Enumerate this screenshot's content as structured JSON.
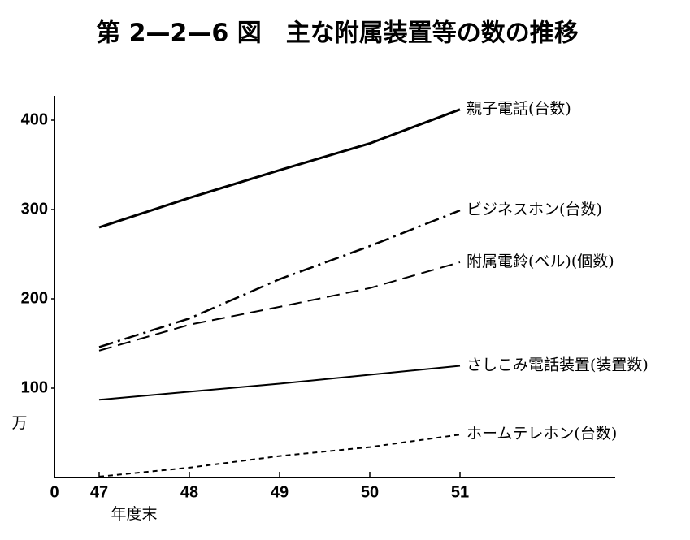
{
  "chart_data": {
    "type": "line",
    "title": "第 2—2—6 図　主な附属装置等の数の推移",
    "y_unit_label": "万",
    "x_label": "年度末",
    "categories": [
      "47",
      "48",
      "49",
      "50",
      "51"
    ],
    "ylim": [
      0,
      420
    ],
    "yticks": [
      0,
      100,
      200,
      300,
      400
    ],
    "grid": false,
    "series": [
      {
        "name": "親子電話(台数)",
        "color": "#000000",
        "line_style": "solid",
        "line_width": 3,
        "values": [
          280,
          313,
          344,
          374,
          412
        ]
      },
      {
        "name": "ビジネスホン(台数)",
        "color": "#000000",
        "line_style": "dashdot",
        "line_width": 2.5,
        "values": [
          146,
          178,
          222,
          259,
          299
        ]
      },
      {
        "name": "附属電鈴(ベル)(個数)",
        "color": "#000000",
        "line_style": "dashed",
        "line_width": 2,
        "values": [
          142,
          171,
          191,
          212,
          241
        ]
      },
      {
        "name": "さしこみ電話装置(装置数)",
        "color": "#000000",
        "line_style": "solid",
        "line_width": 2,
        "values": [
          87,
          96,
          105,
          115,
          125
        ]
      },
      {
        "name": "ホームテレホン(台数)",
        "color": "#000000",
        "line_style": "dotted",
        "line_width": 2,
        "values": [
          1,
          11,
          24,
          34,
          48
        ]
      }
    ]
  }
}
